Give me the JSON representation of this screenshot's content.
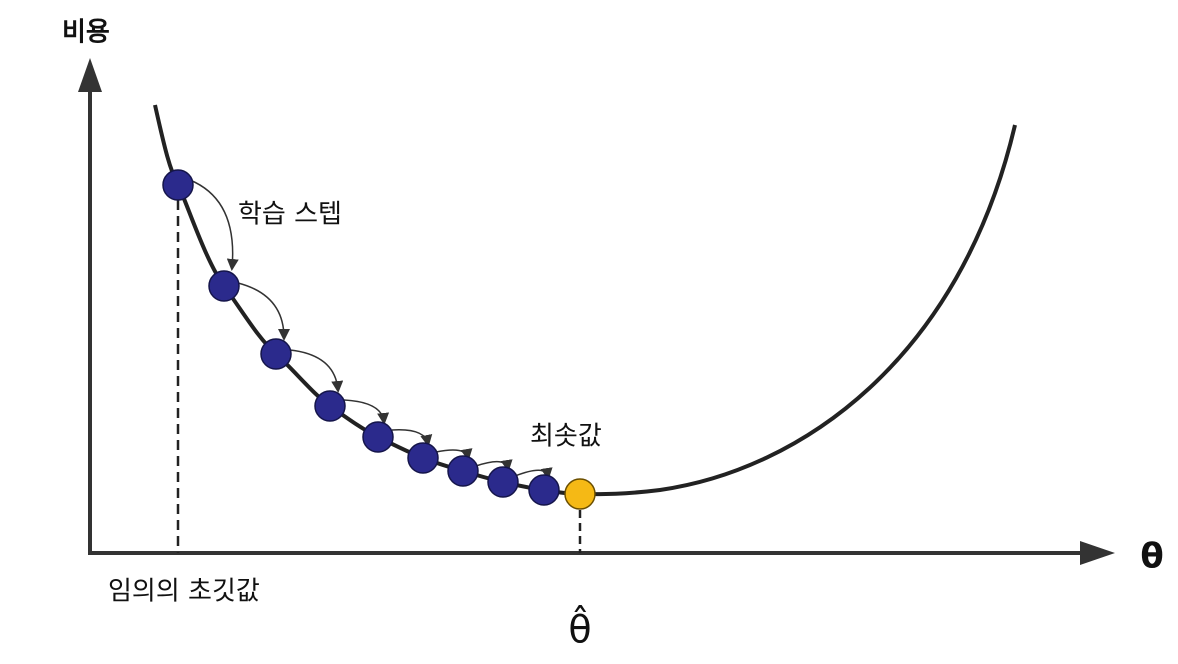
{
  "axes": {
    "y_label": "비용",
    "x_label": "θ"
  },
  "annotations": {
    "steps": "학습 스텝",
    "minimum": "최솟값",
    "initial": "임의의 초깃값",
    "optimum": "θ̂"
  }
}
